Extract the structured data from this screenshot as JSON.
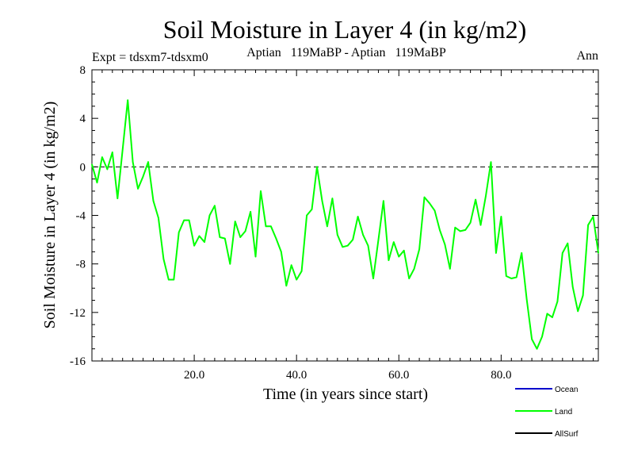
{
  "header": {
    "expt": "Expt = tdsxm7-tdsxm0",
    "period": "Aptian   119MaBP - Aptian   119MaBP",
    "season": "Ann"
  },
  "chart_data": {
    "type": "line",
    "title": "Soil Moisture in Layer 4 (in kg/m2)",
    "xlabel": "Time (in years since start)",
    "ylabel": "Soil Moisture in Layer 4 (in kg/m2)",
    "xlim": [
      0,
      99
    ],
    "ylim": [
      -16,
      8
    ],
    "x_ticks": [
      20,
      40,
      60,
      80
    ],
    "x_tick_labels": [
      "20.0",
      "40.0",
      "60.0",
      "80.0"
    ],
    "y_ticks": [
      -16,
      -12,
      -8,
      -4,
      0,
      4,
      8
    ],
    "y_tick_labels": [
      "-16",
      "-12",
      "-8",
      "-4",
      "0",
      "4",
      "8"
    ],
    "reference_line": 0,
    "legend": [
      {
        "name": "Ocean",
        "color": "#0000cc"
      },
      {
        "name": "Land",
        "color": "#00ff00"
      },
      {
        "name": "AllSurf",
        "color": "#000000"
      }
    ],
    "series": [
      {
        "name": "Land",
        "color": "#00ff00",
        "x": [
          0,
          1,
          2,
          3,
          4,
          5,
          6,
          7,
          8,
          9,
          10,
          11,
          12,
          13,
          14,
          15,
          16,
          17,
          18,
          19,
          20,
          21,
          22,
          23,
          24,
          25,
          26,
          27,
          28,
          29,
          30,
          31,
          32,
          33,
          34,
          35,
          36,
          37,
          38,
          39,
          40,
          41,
          42,
          43,
          44,
          45,
          46,
          47,
          48,
          49,
          50,
          51,
          52,
          53,
          54,
          55,
          56,
          57,
          58,
          59,
          60,
          61,
          62,
          63,
          64,
          65,
          66,
          67,
          68,
          69,
          70,
          71,
          72,
          73,
          74,
          75,
          76,
          77,
          78,
          79,
          80,
          81,
          82,
          83,
          84,
          85,
          86,
          87,
          88,
          89,
          90,
          91,
          92,
          93,
          94,
          95,
          96,
          97,
          98,
          99
        ],
        "values": [
          0.2,
          -1.3,
          0.8,
          -0.2,
          1.2,
          -2.6,
          1.4,
          5.5,
          0.4,
          -1.8,
          -0.8,
          0.4,
          -2.8,
          -4.2,
          -7.6,
          -9.3,
          -9.3,
          -5.4,
          -4.4,
          -4.4,
          -6.5,
          -5.7,
          -6.2,
          -4.0,
          -3.2,
          -5.8,
          -5.9,
          -8.0,
          -4.5,
          -5.8,
          -5.3,
          -3.7,
          -7.4,
          -2.0,
          -4.9,
          -4.9,
          -5.9,
          -7.0,
          -9.8,
          -8.1,
          -9.3,
          -8.6,
          -4.0,
          -3.5,
          0.0,
          -2.8,
          -4.9,
          -2.6,
          -5.6,
          -6.6,
          -6.5,
          -6.0,
          -4.1,
          -5.6,
          -6.5,
          -9.2,
          -6.0,
          -2.8,
          -7.7,
          -6.2,
          -7.4,
          -6.9,
          -9.2,
          -8.4,
          -6.8,
          -2.5,
          -3.0,
          -3.6,
          -5.2,
          -6.4,
          -8.4,
          -5.0,
          -5.3,
          -5.2,
          -4.6,
          -2.7,
          -4.8,
          -2.4,
          0.4,
          -7.1,
          -4.1,
          -9.0,
          -9.2,
          -9.1,
          -7.1,
          -10.9,
          -14.2,
          -15.0,
          -14.0,
          -12.1,
          -12.4,
          -11.1,
          -7.1,
          -6.3,
          -9.9,
          -11.9,
          -10.6,
          -4.8,
          -4.1,
          -7.1
        ]
      }
    ]
  }
}
